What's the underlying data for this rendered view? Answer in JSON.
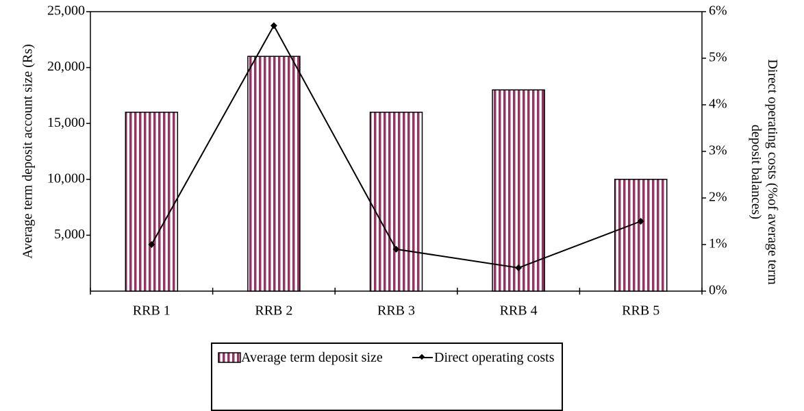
{
  "chart_data": {
    "type": "bar-line",
    "categories": [
      "RRB 1",
      "RRB 2",
      "RRB 3",
      "RRB 4",
      "RRB 5"
    ],
    "series": [
      {
        "name": "Average term deposit size",
        "type": "bar",
        "color": "#993366",
        "values": [
          16000,
          21000,
          16000,
          18000,
          10000
        ]
      },
      {
        "name": "Direct operating costs",
        "type": "line",
        "axis": "y2",
        "color": "#000000",
        "values": [
          1.0,
          5.7,
          0.9,
          0.5,
          1.5
        ]
      }
    ],
    "ylabel": "Average term deposit account size (Rs)",
    "y2label": "Direct operating costs (%of average term deposit balances)",
    "ylim": [
      0,
      25000
    ],
    "yticks": [
      {
        "value": 5000,
        "label": "5,000"
      },
      {
        "value": 10000,
        "label": "10,000"
      },
      {
        "value": 15000,
        "label": "15,000"
      },
      {
        "value": 20000,
        "label": "20,000"
      },
      {
        "value": 25000,
        "label": "25,000"
      }
    ],
    "y2lim": [
      0,
      6
    ],
    "y2ticks": [
      {
        "value": 0,
        "label": "0%"
      },
      {
        "value": 1,
        "label": "1%"
      },
      {
        "value": 2,
        "label": "2%"
      },
      {
        "value": 3,
        "label": "3%"
      },
      {
        "value": 4,
        "label": "4%"
      },
      {
        "value": 5,
        "label": "5%"
      },
      {
        "value": 6,
        "label": "6%"
      }
    ],
    "grid": false,
    "legend": "bottom"
  }
}
